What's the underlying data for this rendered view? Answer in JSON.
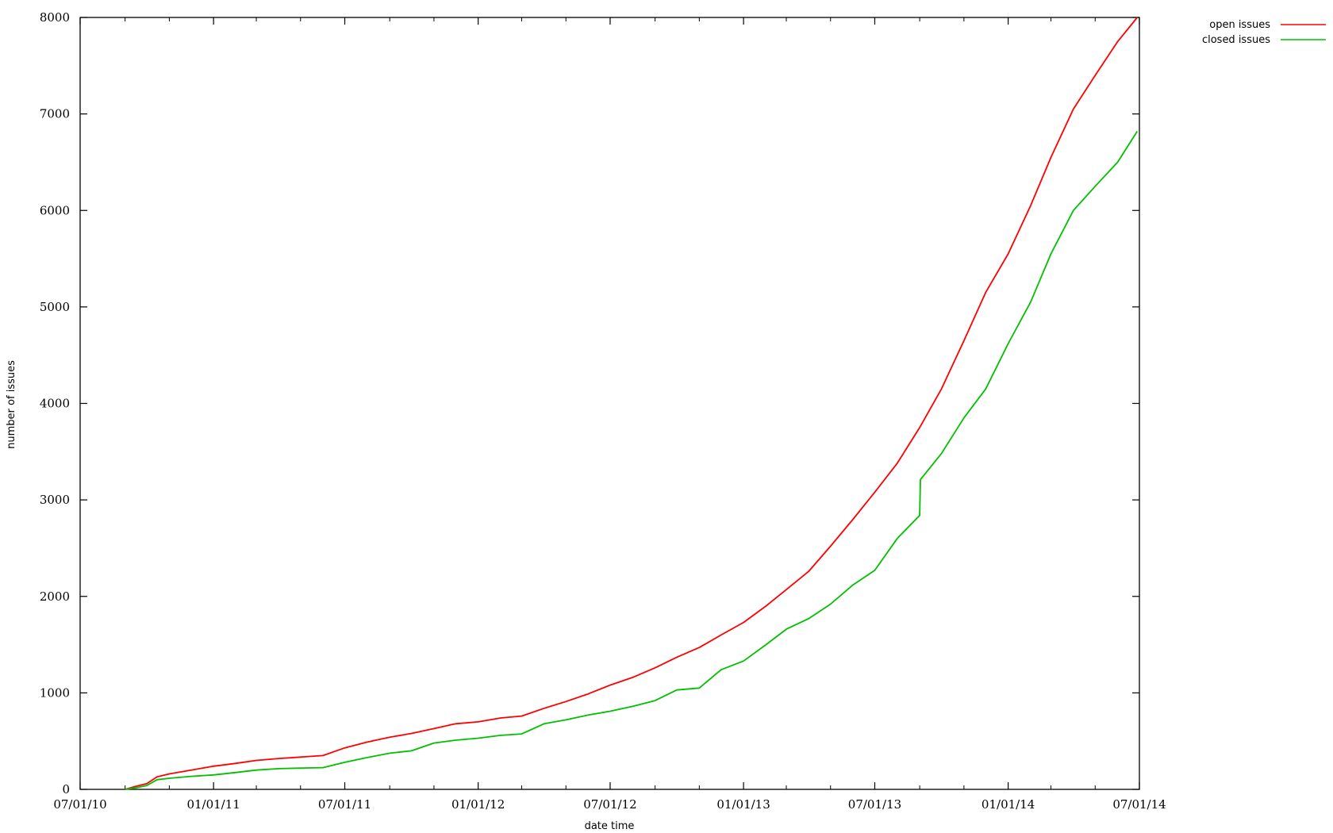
{
  "chart_data": {
    "type": "line",
    "xlabel": "date time",
    "ylabel": "number of issues",
    "x_tick_labels": [
      "07/01/10",
      "01/01/11",
      "07/01/11",
      "01/01/12",
      "07/01/12",
      "01/01/13",
      "07/01/13",
      "01/01/14",
      "07/01/14"
    ],
    "xlim": [
      "07/01/10",
      "07/01/14"
    ],
    "ylim": [
      0,
      8000
    ],
    "y_ticks": [
      0,
      1000,
      2000,
      3000,
      4000,
      5000,
      6000,
      7000,
      8000
    ],
    "grid": false,
    "legend_position": "top-right, outside plot",
    "series": [
      {
        "name": "open issues",
        "color": "#ff0000",
        "points": [
          [
            "09/01/10",
            0
          ],
          [
            "09/15/10",
            30
          ],
          [
            "10/01/10",
            60
          ],
          [
            "10/15/10",
            130
          ],
          [
            "11/01/10",
            160
          ],
          [
            "12/01/10",
            200
          ],
          [
            "01/01/11",
            240
          ],
          [
            "02/01/11",
            270
          ],
          [
            "03/01/11",
            300
          ],
          [
            "04/01/11",
            320
          ],
          [
            "05/01/11",
            335
          ],
          [
            "06/01/11",
            350
          ],
          [
            "07/01/11",
            430
          ],
          [
            "08/01/11",
            490
          ],
          [
            "09/01/11",
            540
          ],
          [
            "10/01/11",
            580
          ],
          [
            "11/01/11",
            630
          ],
          [
            "12/01/11",
            680
          ],
          [
            "01/01/12",
            700
          ],
          [
            "02/01/12",
            740
          ],
          [
            "03/01/12",
            760
          ],
          [
            "04/01/12",
            840
          ],
          [
            "05/01/12",
            910
          ],
          [
            "06/01/12",
            990
          ],
          [
            "07/01/12",
            1080
          ],
          [
            "08/01/12",
            1160
          ],
          [
            "09/01/12",
            1260
          ],
          [
            "10/01/12",
            1370
          ],
          [
            "11/01/12",
            1470
          ],
          [
            "12/01/12",
            1600
          ],
          [
            "01/01/13",
            1730
          ],
          [
            "02/01/13",
            1900
          ],
          [
            "03/01/13",
            2070
          ],
          [
            "04/01/13",
            2260
          ],
          [
            "05/01/13",
            2520
          ],
          [
            "06/01/13",
            2800
          ],
          [
            "07/01/13",
            3080
          ],
          [
            "08/01/13",
            3380
          ],
          [
            "09/01/13",
            3750
          ],
          [
            "10/01/13",
            4150
          ],
          [
            "11/01/13",
            4650
          ],
          [
            "12/01/13",
            5150
          ],
          [
            "01/01/14",
            5550
          ],
          [
            "02/01/14",
            6050
          ],
          [
            "03/01/14",
            6550
          ],
          [
            "04/01/14",
            7050
          ],
          [
            "05/01/14",
            7400
          ],
          [
            "06/01/14",
            7750
          ],
          [
            "06/28/14",
            8000
          ]
        ]
      },
      {
        "name": "closed issues",
        "color": "#00c000",
        "points": [
          [
            "09/01/10",
            0
          ],
          [
            "09/15/10",
            15
          ],
          [
            "10/01/10",
            40
          ],
          [
            "10/15/10",
            100
          ],
          [
            "11/01/10",
            115
          ],
          [
            "12/01/10",
            135
          ],
          [
            "01/01/11",
            150
          ],
          [
            "02/01/11",
            175
          ],
          [
            "03/01/11",
            200
          ],
          [
            "04/01/11",
            215
          ],
          [
            "05/01/11",
            220
          ],
          [
            "06/01/11",
            225
          ],
          [
            "07/01/11",
            280
          ],
          [
            "08/01/11",
            330
          ],
          [
            "09/01/11",
            375
          ],
          [
            "10/01/11",
            400
          ],
          [
            "11/01/11",
            480
          ],
          [
            "12/01/11",
            510
          ],
          [
            "01/01/12",
            530
          ],
          [
            "02/01/12",
            560
          ],
          [
            "03/01/12",
            575
          ],
          [
            "04/01/12",
            680
          ],
          [
            "05/01/12",
            720
          ],
          [
            "06/01/12",
            770
          ],
          [
            "07/01/12",
            810
          ],
          [
            "08/01/12",
            860
          ],
          [
            "09/01/12",
            920
          ],
          [
            "10/01/12",
            1030
          ],
          [
            "11/01/12",
            1050
          ],
          [
            "12/01/12",
            1240
          ],
          [
            "01/01/13",
            1330
          ],
          [
            "02/01/13",
            1500
          ],
          [
            "03/01/13",
            1660
          ],
          [
            "04/01/13",
            1770
          ],
          [
            "05/01/13",
            1920
          ],
          [
            "06/01/13",
            2120
          ],
          [
            "07/01/13",
            2270
          ],
          [
            "08/01/13",
            2600
          ],
          [
            "09/01/13",
            2840
          ],
          [
            "09/02/13",
            3210
          ],
          [
            "10/01/13",
            3480
          ],
          [
            "11/01/13",
            3850
          ],
          [
            "12/01/13",
            4150
          ],
          [
            "01/01/14",
            4620
          ],
          [
            "02/01/14",
            5050
          ],
          [
            "03/01/14",
            5550
          ],
          [
            "04/01/14",
            6000
          ],
          [
            "05/01/14",
            6250
          ],
          [
            "06/01/14",
            6500
          ],
          [
            "06/28/14",
            6820
          ]
        ]
      }
    ]
  }
}
